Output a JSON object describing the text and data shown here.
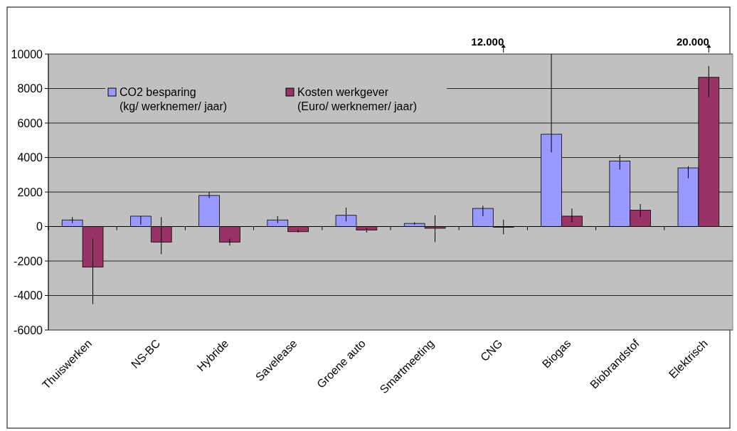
{
  "chart_data": {
    "type": "bar",
    "categories": [
      "Thuiswerken",
      "NS-BC",
      "Hybride",
      "Savelease",
      "Groene auto",
      "Smartmeeting",
      "CNG",
      "Biogas",
      "Biobrandstof",
      "Elektrisch"
    ],
    "series": [
      {
        "name": "CO2 besparing\n(kg/ werknemer/ jaar)",
        "color": "#9999ff",
        "values": [
          380,
          600,
          1800,
          380,
          650,
          180,
          1050,
          5350,
          3800,
          3400
        ],
        "errors": [
          [
            200,
            550
          ],
          [
            100,
            600
          ],
          [
            1650,
            2000
          ],
          [
            200,
            600
          ],
          [
            300,
            1100
          ],
          [
            100,
            250
          ],
          [
            600,
            1200
          ],
          [
            4300,
            10000
          ],
          [
            3300,
            4150
          ],
          [
            2800,
            3500
          ]
        ]
      },
      {
        "name": "Kosten werkgever\n(Euro/ werknemer/ jaar)",
        "color": "#993366",
        "values": [
          -2350,
          -900,
          -900,
          -300,
          -200,
          -100,
          0,
          600,
          950,
          8650
        ],
        "errors": [
          [
            -4500,
            -700
          ],
          [
            -1600,
            550
          ],
          [
            -1100,
            -700
          ],
          [
            -350,
            -200
          ],
          [
            -350,
            -100
          ],
          [
            -900,
            650
          ],
          [
            -450,
            400
          ],
          [
            250,
            1050
          ],
          [
            550,
            1300
          ],
          [
            7500,
            9300
          ]
        ]
      }
    ],
    "ylim": [
      -6000,
      10000
    ],
    "yticks": [
      -6000,
      -4000,
      -2000,
      0,
      2000,
      4000,
      6000,
      8000,
      10000
    ],
    "grid": "y",
    "legend": "top left",
    "annotations": [
      "12.000",
      "20.000"
    ]
  }
}
